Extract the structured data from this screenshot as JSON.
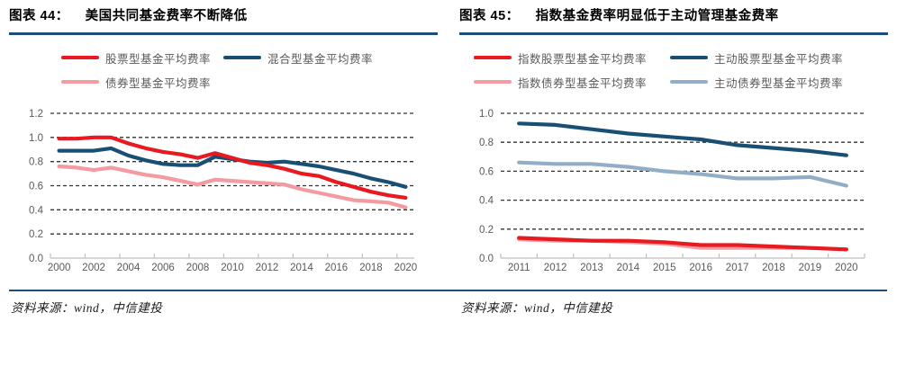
{
  "page": {
    "background": "#ffffff",
    "accent_color": "#1b4e79",
    "grid_color": "#333333",
    "axis_color": "#bfbfbf",
    "tick_label_color": "#595959"
  },
  "figures": [
    {
      "caption_prefix": "图表 44：",
      "caption_title": "美国共同基金费率不断降低",
      "source": "资料来源：wind，中信建投"
    },
    {
      "caption_prefix": "图表 45：",
      "caption_title": "指数基金费率明显低于主动管理基金费率",
      "source": "资料来源：wind，中信建投"
    }
  ],
  "chart_data": [
    {
      "type": "line",
      "title": "美国共同基金费率不断降低",
      "x": [
        2000,
        2001,
        2002,
        2003,
        2004,
        2005,
        2006,
        2007,
        2008,
        2009,
        2010,
        2011,
        2012,
        2013,
        2014,
        2015,
        2016,
        2017,
        2018,
        2019,
        2020
      ],
      "x_tick_interval": 2,
      "xlabel": "",
      "ylabel": "",
      "ylim": [
        0,
        1.2
      ],
      "ytick_step": 0.2,
      "grid": "horizontal-dashed",
      "legend_position": "top",
      "series": [
        {
          "name": "股票型基金平均费率",
          "color": "#e8191f",
          "values": [
            0.99,
            0.99,
            1.0,
            1.0,
            0.95,
            0.91,
            0.88,
            0.86,
            0.83,
            0.87,
            0.83,
            0.79,
            0.77,
            0.74,
            0.7,
            0.68,
            0.63,
            0.59,
            0.55,
            0.52,
            0.5
          ]
        },
        {
          "name": "混合型基金平均费率",
          "color": "#1a4f74",
          "values": [
            0.89,
            0.89,
            0.89,
            0.91,
            0.85,
            0.81,
            0.78,
            0.77,
            0.77,
            0.84,
            0.82,
            0.8,
            0.79,
            0.8,
            0.78,
            0.76,
            0.73,
            0.7,
            0.66,
            0.63,
            0.59
          ]
        },
        {
          "name": "债券型基金平均费率",
          "color": "#f39ba1",
          "values": [
            0.76,
            0.75,
            0.73,
            0.75,
            0.72,
            0.69,
            0.67,
            0.64,
            0.61,
            0.65,
            0.64,
            0.63,
            0.62,
            0.61,
            0.57,
            0.54,
            0.51,
            0.48,
            0.47,
            0.46,
            0.42
          ]
        }
      ]
    },
    {
      "type": "line",
      "title": "指数基金费率明显低于主动管理基金费率",
      "x": [
        2011,
        2012,
        2013,
        2014,
        2015,
        2016,
        2017,
        2018,
        2019,
        2020
      ],
      "x_tick_interval": 1,
      "xlabel": "",
      "ylabel": "",
      "ylim": [
        0,
        1.0
      ],
      "ytick_step": 0.2,
      "grid": "horizontal-dashed",
      "legend_position": "top",
      "series": [
        {
          "name": "指数股票型基金平均费率",
          "color": "#e8191f",
          "values": [
            0.14,
            0.13,
            0.12,
            0.12,
            0.11,
            0.09,
            0.09,
            0.08,
            0.07,
            0.06
          ]
        },
        {
          "name": "主动股票型基金平均费率",
          "color": "#1a4f74",
          "values": [
            0.93,
            0.92,
            0.89,
            0.86,
            0.84,
            0.82,
            0.78,
            0.76,
            0.74,
            0.71
          ]
        },
        {
          "name": "指数债券型基金平均费率",
          "color": "#f39ba1",
          "values": [
            0.13,
            0.12,
            0.12,
            0.11,
            0.1,
            0.07,
            0.07,
            0.07,
            0.07,
            0.06
          ]
        },
        {
          "name": "主动债券型基金平均费率",
          "color": "#92aec6",
          "values": [
            0.66,
            0.65,
            0.65,
            0.63,
            0.6,
            0.58,
            0.55,
            0.55,
            0.56,
            0.5
          ]
        }
      ]
    }
  ]
}
